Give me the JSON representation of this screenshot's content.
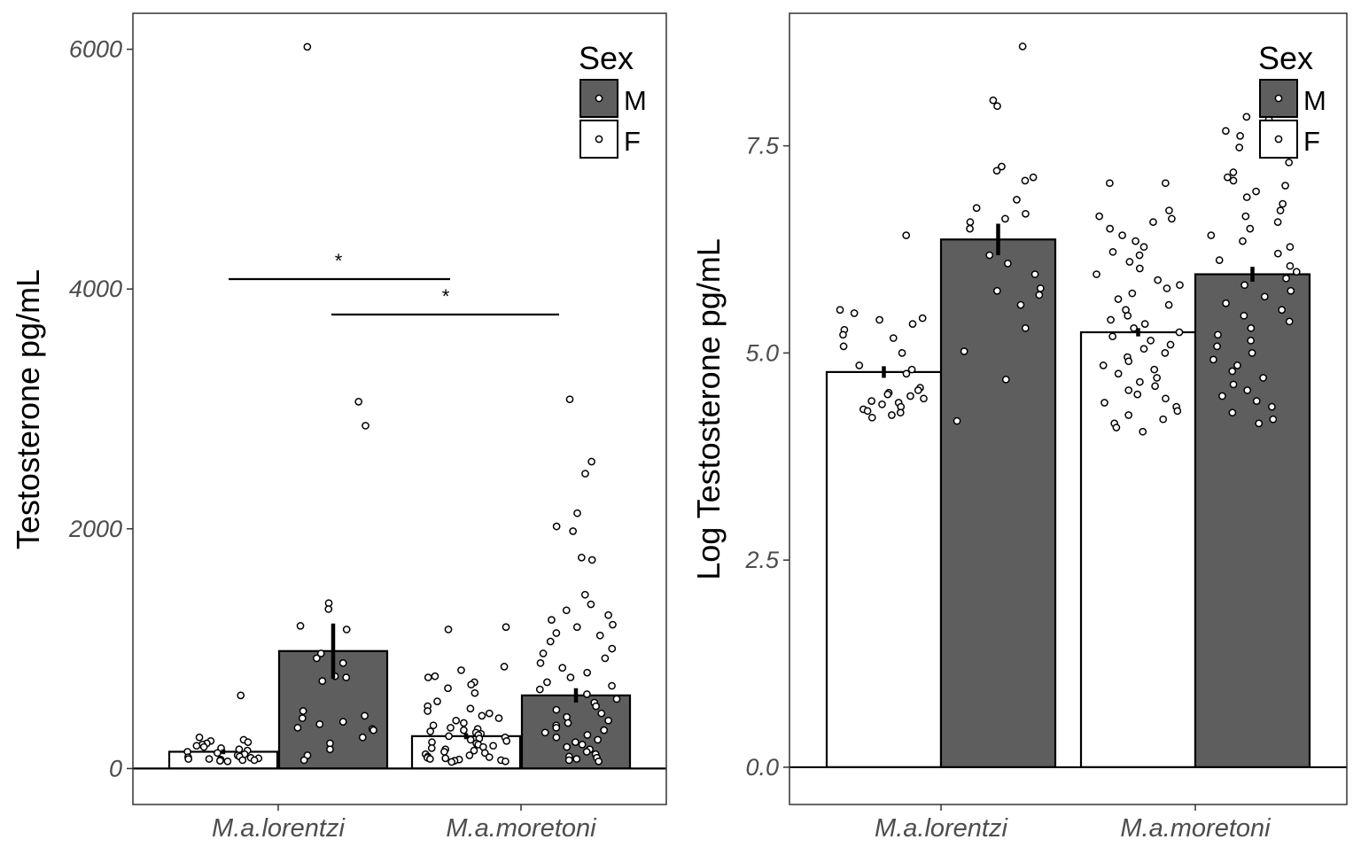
{
  "legend": {
    "title": "Sex",
    "items": [
      {
        "label": "M",
        "fill": "#5e5e5e"
      },
      {
        "label": "F",
        "fill": "#ffffff"
      }
    ]
  },
  "colors": {
    "M": "#5e5e5e",
    "F": "#ffffff",
    "outline": "#000000"
  },
  "chart_data": [
    {
      "type": "bar",
      "title": "",
      "xlabel": "",
      "ylabel": "Testosterone pg/mL",
      "categories": [
        "M.a.lorentzi",
        "M.a.moretoni"
      ],
      "ylim": [
        -300,
        6300
      ],
      "yticks": [
        0,
        2000,
        4000,
        6000
      ],
      "ytick_labels": [
        "0",
        "2000",
        "4000",
        "6000"
      ],
      "grid": false,
      "legend_position": "top-right",
      "series": [
        {
          "name": "F",
          "values": [
            140,
            270
          ],
          "se": [
            20,
            25
          ]
        },
        {
          "name": "M",
          "values": [
            980,
            610
          ],
          "se": [
            230,
            60
          ]
        }
      ],
      "significance": [
        {
          "label": "*",
          "from": [
            "M.a.lorentzi",
            "F"
          ],
          "to": [
            "M.a.moretoni",
            "F"
          ],
          "y": 4100
        },
        {
          "label": "*",
          "from": [
            "M.a.lorentzi",
            "M"
          ],
          "to": [
            "M.a.moretoni",
            "M"
          ],
          "y": 3800
        }
      ],
      "points": {
        "M.a.lorentzi": {
          "F": [
            610,
            260,
            240,
            230,
            220,
            210,
            200,
            190,
            180,
            170,
            160,
            150,
            140,
            130,
            120,
            110,
            100,
            95,
            90,
            85,
            80,
            80,
            75,
            70,
            70,
            65,
            60
          ],
          "M": [
            6020,
            3060,
            2860,
            1380,
            1330,
            1190,
            1160,
            960,
            920,
            880,
            770,
            760,
            730,
            480,
            440,
            420,
            390,
            370,
            340,
            330,
            320,
            260,
            210,
            160,
            110,
            70
          ]
        },
        "M.a.moretoni": {
          "F": [
            1180,
            1160,
            850,
            820,
            770,
            760,
            720,
            700,
            670,
            630,
            560,
            520,
            500,
            480,
            460,
            440,
            420,
            400,
            380,
            360,
            340,
            330,
            320,
            310,
            300,
            290,
            280,
            270,
            260,
            250,
            240,
            230,
            220,
            210,
            200,
            190,
            180,
            170,
            160,
            150,
            140,
            130,
            120,
            110,
            100,
            95,
            90,
            85,
            80,
            75,
            70,
            65,
            60,
            55
          ],
          "M": [
            3080,
            2560,
            2460,
            2130,
            2020,
            1980,
            1760,
            1740,
            1450,
            1370,
            1320,
            1280,
            1240,
            1200,
            1180,
            1130,
            1110,
            1060,
            1000,
            960,
            920,
            880,
            840,
            800,
            760,
            720,
            690,
            660,
            620,
            580,
            550,
            520,
            490,
            460,
            430,
            400,
            380,
            360,
            340,
            320,
            300,
            280,
            260,
            240,
            220,
            200,
            180,
            160,
            140,
            120,
            100,
            90,
            80,
            70,
            60
          ]
        }
      }
    },
    {
      "type": "bar",
      "title": "",
      "xlabel": "",
      "ylabel": "Log Testosterone pg/mL",
      "categories": [
        "M.a.lorentzi",
        "M.a.moretoni"
      ],
      "ylim": [
        -0.45,
        9.1
      ],
      "yticks": [
        0,
        2.5,
        5,
        7.5
      ],
      "ytick_labels": [
        "0.0",
        "2.5",
        "5.0",
        "7.5"
      ],
      "grid": false,
      "legend_position": "top-right",
      "series": [
        {
          "name": "F",
          "values": [
            4.77,
            5.25
          ],
          "se": [
            0.07,
            0.05
          ]
        },
        {
          "name": "M",
          "values": [
            6.37,
            5.95
          ],
          "se": [
            0.19,
            0.09
          ]
        }
      ],
      "points": {
        "M.a.lorentzi": {
          "F": [
            6.42,
            5.52,
            5.48,
            5.42,
            5.4,
            5.35,
            5.28,
            5.22,
            5.18,
            5.08,
            5.0,
            4.85,
            4.8,
            4.75,
            4.58,
            4.55,
            4.52,
            4.5,
            4.48,
            4.45,
            4.42,
            4.4,
            4.38,
            4.35,
            4.32,
            4.3,
            4.28,
            4.25,
            4.22
          ],
          "M": [
            8.7,
            8.05,
            7.98,
            7.25,
            7.2,
            7.12,
            7.08,
            6.85,
            6.75,
            6.68,
            6.62,
            6.58,
            6.5,
            6.18,
            6.08,
            5.95,
            5.78,
            5.75,
            5.7,
            5.58,
            5.3,
            5.02,
            4.68,
            4.18
          ]
        },
        "M.a.moretoni": {
          "F": [
            7.05,
            7.05,
            6.72,
            6.65,
            6.62,
            6.58,
            6.5,
            6.42,
            6.35,
            6.28,
            6.22,
            6.18,
            6.1,
            6.02,
            5.95,
            5.88,
            5.82,
            5.78,
            5.72,
            5.65,
            5.58,
            5.52,
            5.45,
            5.4,
            5.35,
            5.3,
            5.25,
            5.2,
            5.15,
            5.1,
            5.05,
            5.0,
            4.95,
            4.9,
            4.85,
            4.8,
            4.75,
            4.7,
            4.65,
            4.6,
            4.55,
            4.5,
            4.45,
            4.4,
            4.35,
            4.3,
            4.25,
            4.2,
            4.15,
            4.1,
            4.05
          ],
          "M": [
            7.85,
            7.82,
            7.72,
            7.68,
            7.62,
            7.48,
            7.3,
            7.18,
            7.12,
            7.08,
            7.02,
            6.95,
            6.88,
            6.8,
            6.72,
            6.65,
            6.58,
            6.5,
            6.42,
            6.35,
            6.28,
            6.2,
            6.12,
            6.05,
            5.98,
            5.9,
            5.82,
            5.75,
            5.68,
            5.6,
            5.52,
            5.45,
            5.38,
            5.3,
            5.22,
            5.15,
            5.08,
            5.0,
            4.92,
            4.85,
            4.78,
            4.7,
            4.62,
            4.55,
            4.48,
            4.42,
            4.35,
            4.28,
            4.2,
            4.15
          ]
        }
      }
    }
  ]
}
